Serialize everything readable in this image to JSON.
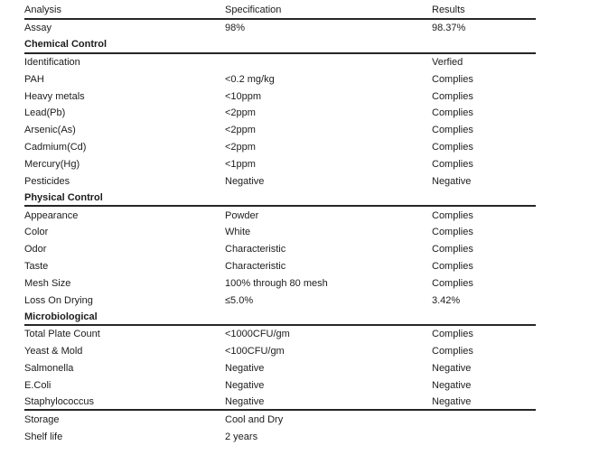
{
  "table": {
    "title": "Analysis specification table",
    "columns": [
      "Analysis",
      "Specification",
      "Results"
    ],
    "rows": [
      {
        "type": "data",
        "divider": false,
        "cells": [
          "Assay",
          "98%",
          "98.37%"
        ]
      },
      {
        "type": "section",
        "divider": true,
        "cells": [
          "Chemical Control",
          "",
          ""
        ]
      },
      {
        "type": "data",
        "divider": false,
        "cells": [
          "Identification",
          "",
          "Verfied"
        ]
      },
      {
        "type": "data",
        "divider": false,
        "cells": [
          "PAH",
          "<0.2 mg/kg",
          "Complies"
        ]
      },
      {
        "type": "data",
        "divider": false,
        "cells": [
          "Heavy metals",
          "<10ppm",
          "Complies"
        ]
      },
      {
        "type": "data",
        "divider": false,
        "cells": [
          "Lead(Pb)",
          "<2ppm",
          "Complies"
        ]
      },
      {
        "type": "data",
        "divider": false,
        "cells": [
          "Arsenic(As)",
          "<2ppm",
          "Complies"
        ]
      },
      {
        "type": "data",
        "divider": false,
        "cells": [
          "Cadmium(Cd)",
          "<2ppm",
          "Complies"
        ]
      },
      {
        "type": "data",
        "divider": false,
        "cells": [
          "Mercury(Hg)",
          "<1ppm",
          "Complies"
        ]
      },
      {
        "type": "data",
        "divider": false,
        "cells": [
          "Pesticides",
          "Negative",
          "Negative"
        ]
      },
      {
        "type": "section",
        "divider": true,
        "cells": [
          "Physical Control",
          "",
          ""
        ]
      },
      {
        "type": "data",
        "divider": false,
        "cells": [
          "Appearance",
          "Powder",
          "Complies"
        ]
      },
      {
        "type": "data",
        "divider": false,
        "cells": [
          "Color",
          "White",
          "Complies"
        ]
      },
      {
        "type": "data",
        "divider": false,
        "cells": [
          "Odor",
          "Characteristic",
          "Complies"
        ]
      },
      {
        "type": "data",
        "divider": false,
        "cells": [
          "Taste",
          "Characteristic",
          "Complies"
        ]
      },
      {
        "type": "data",
        "divider": false,
        "cells": [
          "Mesh Size",
          "100% through 80 mesh",
          "Complies"
        ]
      },
      {
        "type": "data",
        "divider": false,
        "cells": [
          "Loss On Drying",
          "≤5.0%",
          "3.42%"
        ]
      },
      {
        "type": "section",
        "divider": true,
        "cells": [
          "Microbiological",
          "",
          ""
        ]
      },
      {
        "type": "data",
        "divider": false,
        "cells": [
          "Total Plate Count",
          "<1000CFU/gm",
          "Complies"
        ]
      },
      {
        "type": "data",
        "divider": false,
        "cells": [
          "Yeast & Mold",
          "<100CFU/gm",
          "Complies"
        ]
      },
      {
        "type": "data",
        "divider": false,
        "cells": [
          "Salmonella",
          "Negative",
          "Negative"
        ]
      },
      {
        "type": "data",
        "divider": false,
        "cells": [
          "E.Coli",
          "Negative",
          "Negative"
        ]
      },
      {
        "type": "data",
        "divider": true,
        "cells": [
          "Staphylococcus",
          "Negative",
          "Negative"
        ]
      },
      {
        "type": "data",
        "divider": false,
        "cells": [
          "Storage",
          "Cool and Dry",
          ""
        ]
      },
      {
        "type": "data",
        "divider": false,
        "cells": [
          "Shelf life",
          "2 years",
          ""
        ]
      }
    ],
    "colors": {
      "text": "#1c1c1c",
      "rule": "#262626",
      "background": "#ffffff"
    }
  }
}
